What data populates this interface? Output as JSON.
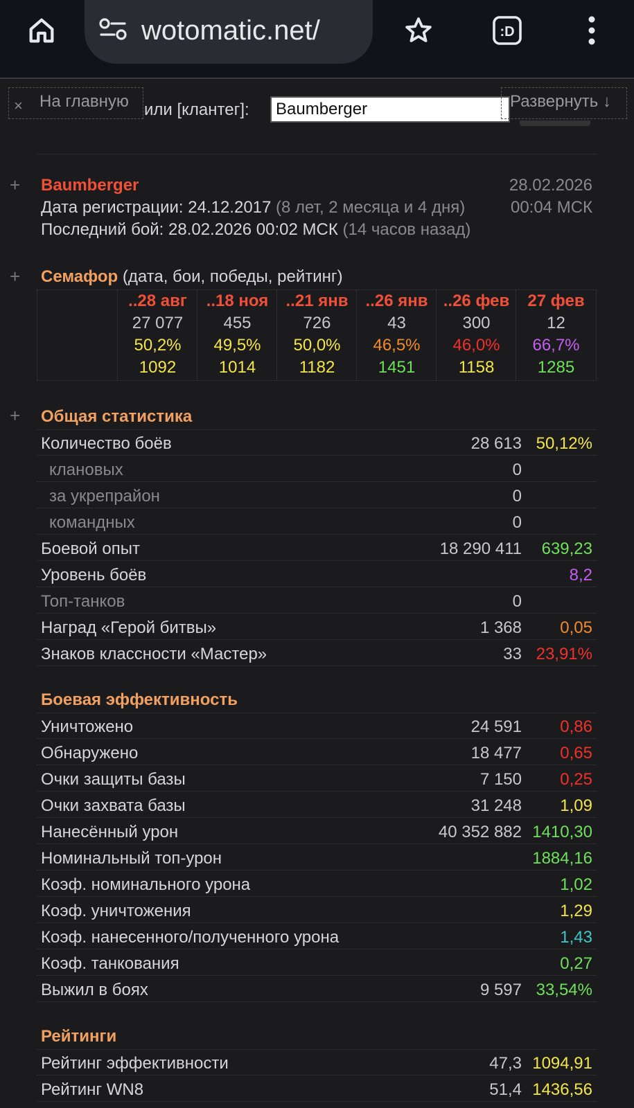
{
  "browser": {
    "url": "wotomatic.net/"
  },
  "toolbar": {
    "home_label": "На главную",
    "clantag_label": "или [клантег]:",
    "search_value": "Baumberger",
    "expand_label": "Развернуть ↓"
  },
  "player": {
    "name": "Baumberger",
    "reg_label": "Дата регистрации: 24.12.2017",
    "reg_ago": "(8 лет, 2 месяца и 4 дня)",
    "last_label": "Последний бой: 28.02.2026 00:02 МСК",
    "last_ago": "(14 часов назад)",
    "date": "28.02.2026",
    "time": "00:04 МСК"
  },
  "semaphore": {
    "title": "Семафор",
    "subtitle": "(дата, бои, победы, рейтинг)",
    "columns": [
      {
        "date": "..28 авг",
        "battles": "27 077",
        "wins": "50,2%",
        "rating": "1092",
        "wins_color": "#f2e54b",
        "rating_color": "#f2e54b"
      },
      {
        "date": "..18 ноя",
        "battles": "455",
        "wins": "49,5%",
        "rating": "1014",
        "wins_color": "#f2e54b",
        "rating_color": "#f2e54b"
      },
      {
        "date": "..21 янв",
        "battles": "726",
        "wins": "50,0%",
        "rating": "1182",
        "wins_color": "#f2e54b",
        "rating_color": "#f2e54b"
      },
      {
        "date": "..26 янв",
        "battles": "43",
        "wins": "46,5%",
        "rating": "1451",
        "wins_color": "#f28a2a",
        "rating_color": "#6ee05a"
      },
      {
        "date": "..26 фев",
        "battles": "300",
        "wins": "46,0%",
        "rating": "1158",
        "wins_color": "#f0302a",
        "rating_color": "#f2e54b"
      },
      {
        "date": "27 фев",
        "battles": "12",
        "wins": "66,7%",
        "rating": "1285",
        "wins_color": "#c45ef0",
        "rating_color": "#6ee05a"
      }
    ]
  },
  "general": {
    "title": "Общая статистика",
    "rows": [
      {
        "label": "Количество боёв",
        "value": "28 613",
        "metric": "50,12%"
      },
      {
        "label": "клановых",
        "value": "0",
        "metric": ""
      },
      {
        "label": "за укрепрайон",
        "value": "0",
        "metric": ""
      },
      {
        "label": "командных",
        "value": "0",
        "metric": ""
      },
      {
        "label": "Боевой опыт",
        "value": "18 290 411",
        "metric": "639,23"
      },
      {
        "label": "Уровень боёв",
        "value": "",
        "metric": "8,2"
      },
      {
        "label": "Топ-танков",
        "value": "0",
        "metric": ""
      },
      {
        "label": "Наград «Герой битвы»",
        "value": "1 368",
        "metric": "0,05"
      },
      {
        "label": "Знаков классности «Мастер»",
        "value": "33",
        "metric": "23,91%"
      }
    ]
  },
  "efficiency": {
    "title": "Боевая эффективность",
    "rows": [
      {
        "label": "Уничтожено",
        "value": "24 591",
        "metric": "0,86"
      },
      {
        "label": "Обнаружено",
        "value": "18 477",
        "metric": "0,65"
      },
      {
        "label": "Очки защиты базы",
        "value": "7 150",
        "metric": "0,25"
      },
      {
        "label": "Очки захвата базы",
        "value": "31 248",
        "metric": "1,09"
      },
      {
        "label": "Нанесённый урон",
        "value": "40 352 882",
        "metric": "1410,30"
      },
      {
        "label": "Номинальный топ-урон",
        "value": "",
        "metric": "1884,16"
      },
      {
        "label": "Коэф. номинального урона",
        "value": "",
        "metric": "1,02"
      },
      {
        "label": "Коэф. уничтожения",
        "value": "",
        "metric": "1,29"
      },
      {
        "label": "Коэф. нанесенного/полученного урона",
        "value": "",
        "metric": "1,43"
      },
      {
        "label": "Коэф. танкования",
        "value": "",
        "metric": "0,27"
      },
      {
        "label": "Выжил в боях",
        "value": "9 597",
        "metric": "33,54%"
      }
    ]
  },
  "ratings": {
    "title": "Рейтинги",
    "rows": [
      {
        "label": "Рейтинг эффективности",
        "value": "47,3",
        "metric": "1094,91"
      },
      {
        "label": "Рейтинг WN8",
        "value": "51,4",
        "metric": "1436,56"
      }
    ]
  },
  "colors": {
    "accent_orange": "#f0a060",
    "name_red": "#f0503a",
    "yellow": "#f2e54b",
    "green": "#6ee05a",
    "red": "#f0302a",
    "orange": "#f28a2a",
    "purple": "#c45ef0",
    "teal": "#3cc8c8"
  },
  "icons": [
    "home-icon",
    "site-settings-icon",
    "star-icon",
    "tabs-icon",
    "more-vert-icon",
    "close-icon",
    "plus-icon"
  ]
}
